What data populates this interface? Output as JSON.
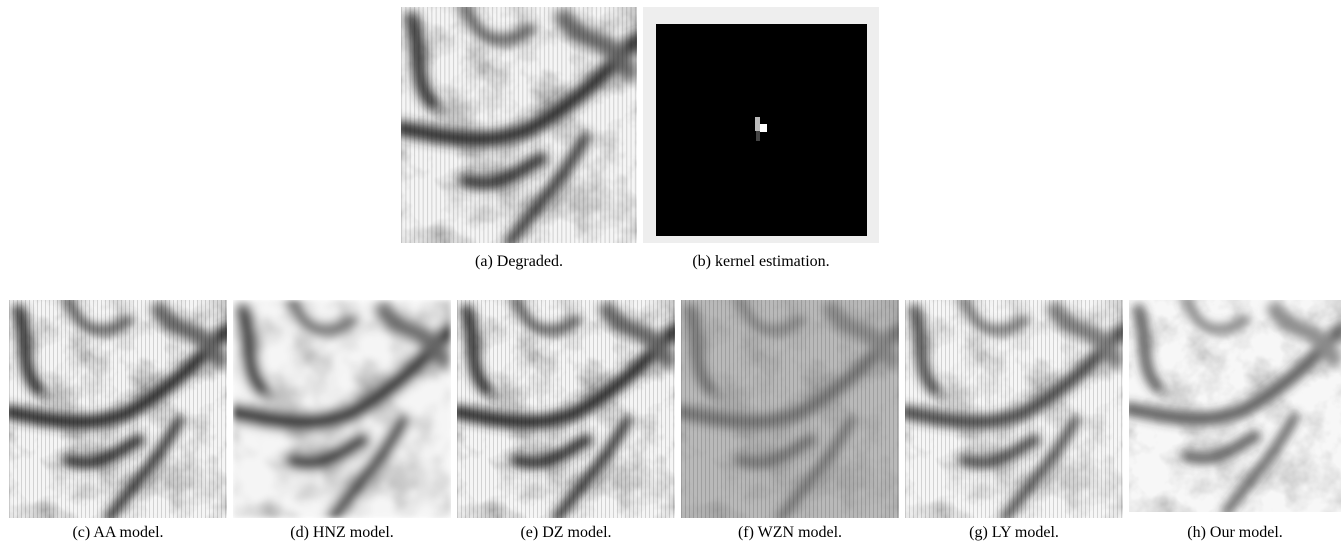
{
  "figure": {
    "panels": [
      {
        "caption": "(a) Degraded."
      },
      {
        "caption": "(b) kernel estimation."
      },
      {
        "caption": "(c) AA model."
      },
      {
        "caption": "(d) HNZ model."
      },
      {
        "caption": "(e) DZ model."
      },
      {
        "caption": "(f) WZN model."
      },
      {
        "caption": "(g) LY model."
      },
      {
        "caption": "(h) Our model."
      }
    ]
  }
}
